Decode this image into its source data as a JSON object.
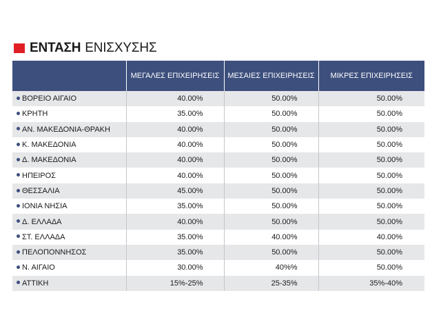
{
  "title": {
    "bold": "ΕΝΤΑΣΗ",
    "light": "ΕΝΙΣΧΥΣΗΣ"
  },
  "colors": {
    "accent_red": "#e01e25",
    "header_bg": "#3d4f7d",
    "row_alt": "#e6e7e9"
  },
  "table": {
    "headers": [
      "",
      "ΜΕΓΑΛΕΣ ΕΠΙΧΕΙΡΗΣΕΙΣ",
      "ΜΕΣΑΙΕΣ ΕΠΙΧΕΙΡΗΣΕΙΣ",
      "ΜΙΚΡΕΣ ΕΠΙΧΕΙΡΗΣΕΙΣ"
    ],
    "rows": [
      [
        "ΒΟΡΕΙΟ ΑΙΓΑΙΟ",
        "40.00%",
        "50.00%",
        "50.00%"
      ],
      [
        "ΚΡΗΤΗ",
        "35.00%",
        "50.00%",
        "50.00%"
      ],
      [
        "ΑΝ. ΜΑΚΕΔΟΝΙΑ-ΘΡΑΚΗ",
        "40.00%",
        "50.00%",
        "50.00%"
      ],
      [
        "Κ. ΜΑΚΕΔΟΝΙΑ",
        "40.00%",
        "50.00%",
        "50.00%"
      ],
      [
        "Δ. ΜΑΚΕΔΟΝΙΑ",
        "40.00%",
        "50.00%",
        "50.00%"
      ],
      [
        "ΗΠΕΙΡΟΣ",
        "40.00%",
        "50.00%",
        "50.00%"
      ],
      [
        "ΘΕΣΣΑΛΙΑ",
        "45.00%",
        "50.00%",
        "50.00%"
      ],
      [
        "ΙΟΝΙΑ ΝΗΣΙΑ",
        "35.00%",
        "50.00%",
        "50.00%"
      ],
      [
        "Δ. ΕΛΛΑΔΑ",
        "40.00%",
        "50.00%",
        "50.00%"
      ],
      [
        "ΣΤ. ΕΛΛΑΔΑ",
        "35.00%",
        "40.00%",
        "40.00%"
      ],
      [
        "ΠΕΛΟΠΟΝΝΗΣΟΣ",
        "35.00%",
        "50.00%",
        "50.00%"
      ],
      [
        "Ν. ΑΙΓΑΙΟ",
        "30.00%",
        "40%%",
        "50.00%"
      ],
      [
        "ΑΤΤΙΚΗ",
        "15%-25%",
        "25-35%",
        "35%-40%"
      ]
    ]
  }
}
